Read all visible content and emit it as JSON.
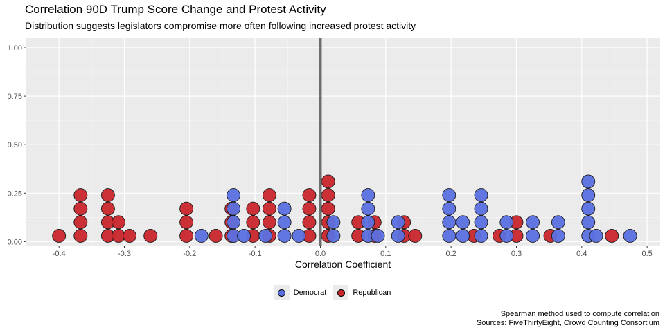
{
  "chart_data": {
    "type": "scatter",
    "style": "dot-plot",
    "title": "Correlation 90D Trump Score Change and Protest Activity",
    "subtitle": "Distribution suggests legislators compromise more often following increased protest activity",
    "xlabel": "Correlation Coefficient",
    "ylabel": "",
    "xlim": [
      -0.45,
      0.52
    ],
    "ylim": [
      -0.02,
      1.05
    ],
    "xticks": [
      "-0.4",
      "-0.3",
      "-0.2",
      "-0.1",
      "0.0",
      "0.1",
      "0.2",
      "0.3",
      "0.4",
      "0.5"
    ],
    "yticks": [
      "0.00",
      "0.25",
      "0.50",
      "0.75",
      "1.00"
    ],
    "vline_x": 0,
    "grid": true,
    "legend_position": "bottom",
    "caption": [
      "Spearman method used to compute correlation",
      "Sources: FiveThirtyEight, Crowd Counting Consortium"
    ],
    "colors": {
      "Democrat": "#5b70e0",
      "Republican": "#c8262b",
      "vline": "#6e6e6e",
      "panel": "#ebebeb"
    },
    "series": [
      {
        "name": "Democrat",
        "x": [
          -0.182,
          -0.133,
          -0.133,
          -0.133,
          -0.133,
          -0.117,
          -0.084,
          -0.055,
          -0.055,
          -0.055,
          -0.033,
          0.02,
          0.02,
          0.073,
          0.073,
          0.073,
          0.073,
          0.088,
          0.119,
          0.119,
          0.197,
          0.197,
          0.197,
          0.197,
          0.218,
          0.218,
          0.246,
          0.246,
          0.246,
          0.246,
          0.285,
          0.285,
          0.325,
          0.325,
          0.364,
          0.364,
          0.41,
          0.41,
          0.41,
          0.41,
          0.41,
          0.422,
          0.474
        ],
        "y": [
          0.03,
          0.03,
          0.1,
          0.17,
          0.24,
          0.03,
          0.03,
          0.03,
          0.1,
          0.17,
          0.03,
          0.03,
          0.1,
          0.03,
          0.1,
          0.17,
          0.24,
          0.03,
          0.03,
          0.1,
          0.03,
          0.1,
          0.17,
          0.24,
          0.03,
          0.1,
          0.03,
          0.1,
          0.17,
          0.24,
          0.03,
          0.1,
          0.03,
          0.1,
          0.03,
          0.1,
          0.03,
          0.1,
          0.17,
          0.24,
          0.31,
          0.03,
          0.03
        ]
      },
      {
        "name": "Republican",
        "x": [
          -0.4,
          -0.367,
          -0.367,
          -0.367,
          -0.367,
          -0.325,
          -0.325,
          -0.325,
          -0.325,
          -0.309,
          -0.309,
          -0.292,
          -0.26,
          -0.205,
          -0.205,
          -0.205,
          -0.16,
          -0.136,
          -0.136,
          -0.136,
          -0.103,
          -0.103,
          -0.103,
          -0.078,
          -0.078,
          -0.078,
          -0.078,
          -0.017,
          -0.017,
          -0.017,
          -0.017,
          0.012,
          0.012,
          0.012,
          0.012,
          0.012,
          0.058,
          0.058,
          0.083,
          0.083,
          0.128,
          0.128,
          0.145,
          0.235,
          0.274,
          0.3,
          0.3,
          0.352,
          0.446
        ],
        "y": [
          0.03,
          0.03,
          0.1,
          0.17,
          0.24,
          0.03,
          0.1,
          0.17,
          0.24,
          0.03,
          0.1,
          0.03,
          0.03,
          0.03,
          0.1,
          0.17,
          0.03,
          0.03,
          0.1,
          0.17,
          0.03,
          0.1,
          0.17,
          0.03,
          0.1,
          0.17,
          0.24,
          0.03,
          0.1,
          0.17,
          0.24,
          0.03,
          0.1,
          0.17,
          0.24,
          0.31,
          0.03,
          0.1,
          0.03,
          0.1,
          0.03,
          0.1,
          0.03,
          0.03,
          0.03,
          0.03,
          0.1,
          0.03,
          0.03
        ]
      }
    ]
  }
}
